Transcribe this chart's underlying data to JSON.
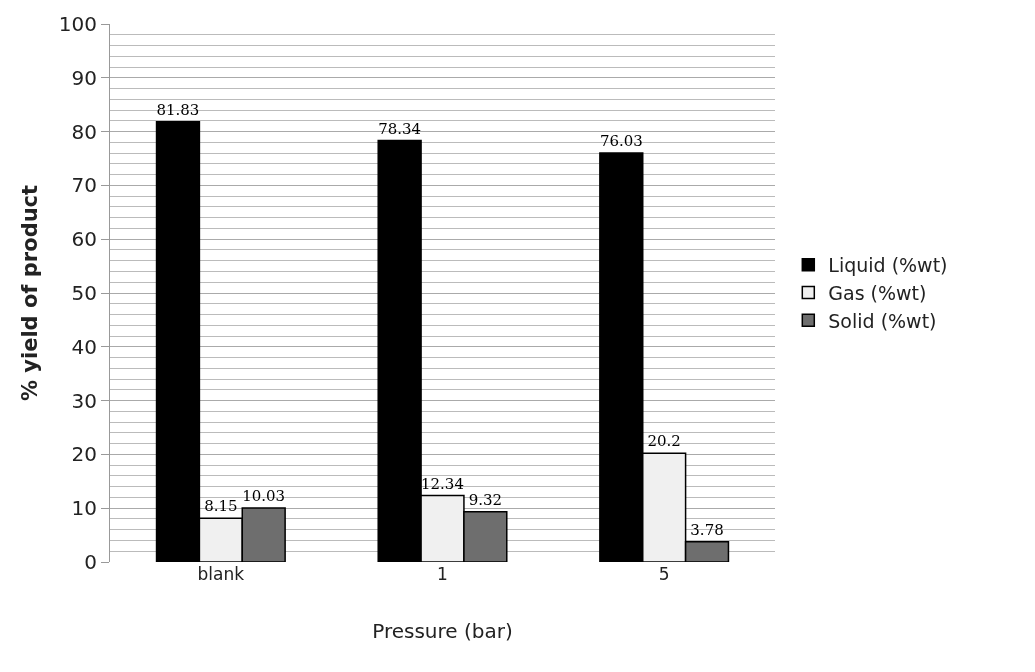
{
  "chart_data": {
    "type": "bar",
    "xlabel": "Pressure (bar)",
    "ylabel": "% yield of product",
    "categories": [
      "blank",
      "1",
      "5"
    ],
    "series": [
      {
        "name": "Liquid (%wt)",
        "color": "#000000",
        "values": [
          81.83,
          78.34,
          76.03
        ]
      },
      {
        "name": "Gas (%wt)",
        "color": "#f0f0f0",
        "values": [
          8.15,
          12.34,
          20.2
        ]
      },
      {
        "name": "Solid (%wt)",
        "color": "#6e6e6e",
        "values": [
          10.03,
          9.32,
          3.78
        ]
      }
    ],
    "ylim": [
      0,
      100
    ],
    "yticks": [
      0,
      10,
      20,
      30,
      40,
      50,
      60,
      70,
      80,
      90,
      100
    ],
    "grid": "y",
    "legend": "right",
    "data_labels": true
  }
}
